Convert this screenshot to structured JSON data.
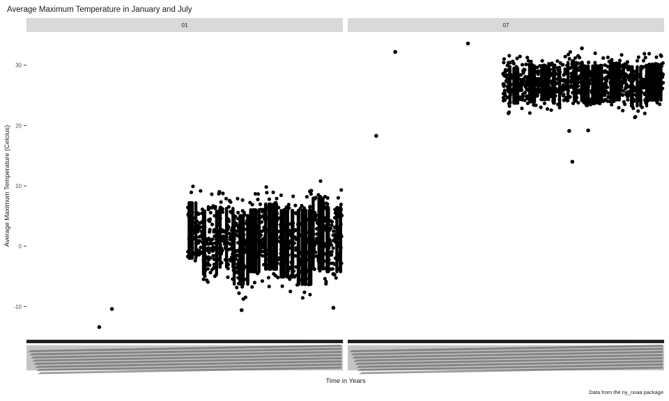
{
  "chart_data": {
    "type": "scatter",
    "title": "Average Maximum Temperature in January and July",
    "xlabel": "Time in Years",
    "ylabel": "Average Maximum Temperature (Celcius)",
    "caption": "Data from the ny_noaa package",
    "ylim": [
      -15.5,
      35.5
    ],
    "yticks": [
      -10,
      0,
      10,
      20,
      30
    ],
    "grid": false,
    "x_tick_labels_note": "x tick labels are overplotted and illegible",
    "x_start_fraction": 0.51,
    "panels": [
      {
        "label": "01",
        "band_center": [
          2.6,
          0.6,
          1.4,
          -0.6,
          0.9,
          1.6,
          0.4,
          -0.2,
          2.1,
          1.1
        ],
        "band_halfwidth": [
          5.4,
          6.1,
          5.7,
          6.6,
          6.0,
          6.3,
          6.4,
          7.1,
          6.8,
          6.2
        ],
        "outliers": [
          {
            "x": 0.23,
            "y": -13.4
          },
          {
            "x": 0.27,
            "y": -10.4
          },
          {
            "x": 0.68,
            "y": -10.6
          },
          {
            "x": 0.97,
            "y": -10.2
          },
          {
            "x": 0.61,
            "y": 9.0
          },
          {
            "x": 0.9,
            "y": 9.2
          }
        ]
      },
      {
        "label": "07",
        "band_center": [
          26.6,
          26.9,
          27.1,
          26.7,
          27.3,
          26.8,
          27.0,
          27.3,
          26.5,
          27.2
        ],
        "band_halfwidth": [
          3.5,
          3.6,
          3.4,
          3.6,
          3.8,
          3.7,
          3.6,
          3.7,
          3.9,
          3.6
        ],
        "outliers": [
          {
            "x": 0.09,
            "y": 18.3
          },
          {
            "x": 0.71,
            "y": 14.0
          },
          {
            "x": 0.7,
            "y": 19.1
          },
          {
            "x": 0.76,
            "y": 19.2
          },
          {
            "x": 0.38,
            "y": 33.6
          },
          {
            "x": 0.74,
            "y": 32.8
          },
          {
            "x": 0.15,
            "y": 32.2
          }
        ]
      }
    ]
  }
}
